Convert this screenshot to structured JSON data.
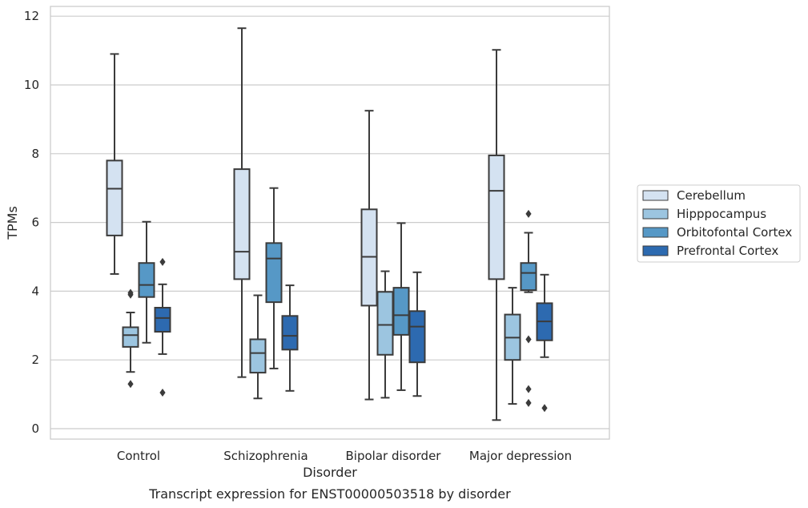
{
  "chart_data": {
    "type": "box",
    "title": "Transcript expression for ENST00000503518 by disorder",
    "xlabel": "Disorder",
    "ylabel": "TPMs",
    "ylim": [
      -0.3,
      12.25
    ],
    "yticks": [
      0,
      2,
      4,
      6,
      8,
      10,
      12
    ],
    "grid": "horizontal",
    "legend_position": "right",
    "categories": [
      "Control",
      "Schizophrenia",
      "Bipolar disorder",
      "Major depression"
    ],
    "series": [
      {
        "name": "Cerebellum",
        "color": "#d4e2f1",
        "boxes": [
          {
            "whisker_low": 4.5,
            "q1": 5.62,
            "median": 6.98,
            "q3": 7.8,
            "whisker_high": 10.9,
            "outliers": []
          },
          {
            "whisker_low": 1.5,
            "q1": 4.35,
            "median": 5.15,
            "q3": 7.55,
            "whisker_high": 11.65,
            "outliers": []
          },
          {
            "whisker_low": 0.85,
            "q1": 3.58,
            "median": 5.0,
            "q3": 6.38,
            "whisker_high": 9.25,
            "outliers": []
          },
          {
            "whisker_low": 0.25,
            "q1": 4.35,
            "median": 6.92,
            "q3": 7.95,
            "whisker_high": 11.02,
            "outliers": []
          }
        ]
      },
      {
        "name": "Hipppocampus",
        "color": "#9cc5e0",
        "boxes": [
          {
            "whisker_low": 1.65,
            "q1": 2.38,
            "median": 2.72,
            "q3": 2.95,
            "whisker_high": 3.38,
            "outliers": [
              3.9,
              3.95,
              1.3
            ]
          },
          {
            "whisker_low": 0.88,
            "q1": 1.63,
            "median": 2.2,
            "q3": 2.6,
            "whisker_high": 3.88,
            "outliers": []
          },
          {
            "whisker_low": 0.9,
            "q1": 2.15,
            "median": 3.02,
            "q3": 3.98,
            "whisker_high": 4.58,
            "outliers": []
          },
          {
            "whisker_low": 0.72,
            "q1": 2.0,
            "median": 2.65,
            "q3": 3.32,
            "whisker_high": 4.1,
            "outliers": []
          }
        ]
      },
      {
        "name": "Orbitofontal Cortex",
        "color": "#5698c6",
        "boxes": [
          {
            "whisker_low": 2.5,
            "q1": 3.83,
            "median": 4.18,
            "q3": 4.82,
            "whisker_high": 6.02,
            "outliers": []
          },
          {
            "whisker_low": 1.75,
            "q1": 3.68,
            "median": 4.95,
            "q3": 5.4,
            "whisker_high": 7.0,
            "outliers": []
          },
          {
            "whisker_low": 1.12,
            "q1": 2.73,
            "median": 3.3,
            "q3": 4.1,
            "whisker_high": 5.98,
            "outliers": []
          },
          {
            "whisker_low": 3.97,
            "q1": 4.03,
            "median": 4.53,
            "q3": 4.82,
            "whisker_high": 5.7,
            "outliers": [
              6.25,
              2.6,
              1.15,
              0.75
            ]
          }
        ]
      },
      {
        "name": "Prefrontal Cortex",
        "color": "#2d6ab0",
        "boxes": [
          {
            "whisker_low": 2.17,
            "q1": 2.82,
            "median": 3.22,
            "q3": 3.52,
            "whisker_high": 4.2,
            "outliers": [
              4.85,
              1.05
            ]
          },
          {
            "whisker_low": 1.1,
            "q1": 2.3,
            "median": 2.7,
            "q3": 3.28,
            "whisker_high": 4.17,
            "outliers": []
          },
          {
            "whisker_low": 0.95,
            "q1": 1.93,
            "median": 2.97,
            "q3": 3.42,
            "whisker_high": 4.55,
            "outliers": []
          },
          {
            "whisker_low": 2.08,
            "q1": 2.57,
            "median": 3.12,
            "q3": 3.65,
            "whisker_high": 4.48,
            "outliers": [
              0.6
            ]
          }
        ]
      }
    ]
  }
}
